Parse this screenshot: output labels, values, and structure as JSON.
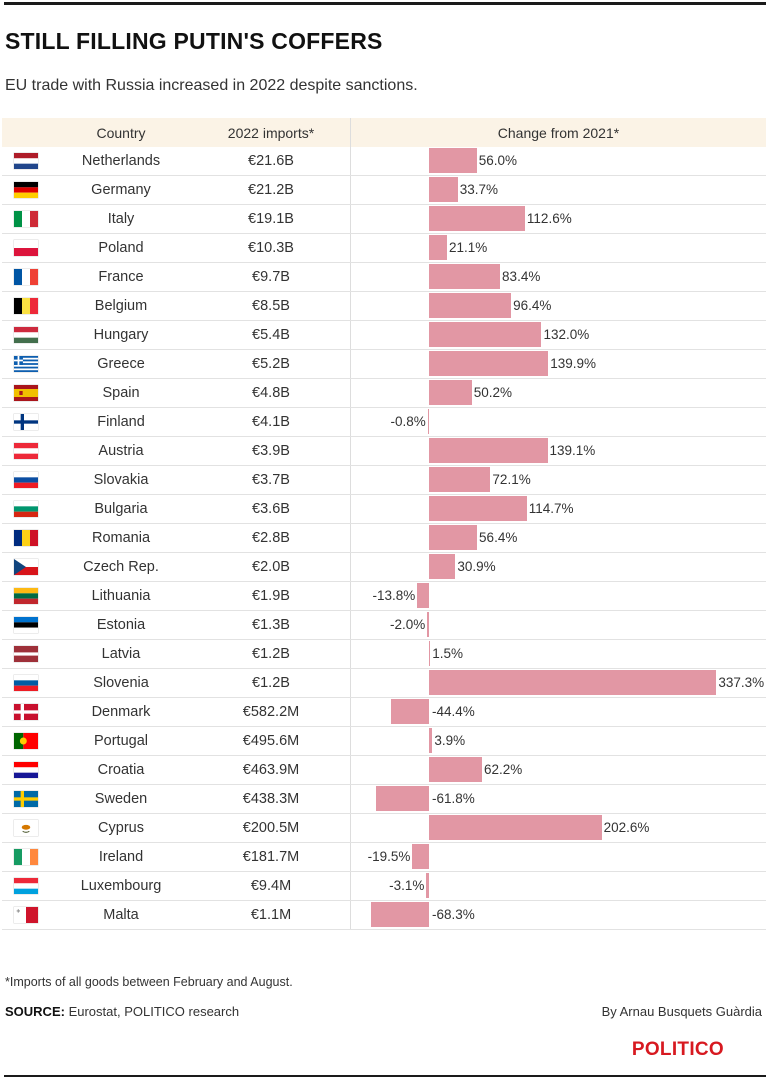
{
  "title": "STILL FILLING PUTIN'S COFFERS",
  "subtitle": "EU trade with Russia increased in 2022 despite sanctions.",
  "columns": {
    "country": "Country",
    "imports": "2022 imports*",
    "change": "Change from 2021*"
  },
  "chart_data": {
    "type": "bar",
    "orientation": "horizontal",
    "title": "STILL FILLING PUTIN'S COFFERS",
    "subtitle": "EU trade with Russia increased in 2022 despite sanctions.",
    "xlabel": "Change from 2021*",
    "ylabel": "Country",
    "xlim": [
      -70,
      340
    ],
    "grid": false,
    "legend": "none",
    "value_unit": "%",
    "categories": [
      "Netherlands",
      "Germany",
      "Italy",
      "Poland",
      "France",
      "Belgium",
      "Hungary",
      "Greece",
      "Spain",
      "Finland",
      "Austria",
      "Slovakia",
      "Bulgaria",
      "Romania",
      "Czech Rep.",
      "Lithuania",
      "Estonia",
      "Latvia",
      "Slovenia",
      "Denmark",
      "Portugal",
      "Croatia",
      "Sweden",
      "Cyprus",
      "Ireland",
      "Luxembourg",
      "Malta"
    ],
    "imports": [
      "€21.6B",
      "€21.2B",
      "€19.1B",
      "€10.3B",
      "€9.7B",
      "€8.5B",
      "€5.4B",
      "€5.2B",
      "€4.8B",
      "€4.1B",
      "€3.9B",
      "€3.7B",
      "€3.6B",
      "€2.8B",
      "€2.0B",
      "€1.9B",
      "€1.3B",
      "€1.2B",
      "€1.2B",
      "€582.2M",
      "€495.6M",
      "€463.9M",
      "€438.3M",
      "€200.5M",
      "€181.7M",
      "€9.4M",
      "€1.1M"
    ],
    "values": [
      56.0,
      33.7,
      112.6,
      21.1,
      83.4,
      96.4,
      132.0,
      139.9,
      50.2,
      -0.8,
      139.1,
      72.1,
      114.7,
      56.4,
      30.9,
      -13.8,
      -2.0,
      1.5,
      337.3,
      -44.4,
      3.9,
      62.2,
      -61.8,
      202.6,
      -19.5,
      -3.1,
      -68.3
    ],
    "value_labels": [
      "56.0%",
      "33.7%",
      "112.6%",
      "21.1%",
      "83.4%",
      "96.4%",
      "132.0%",
      "139.9%",
      "50.2%",
      "-0.8%",
      "139.1%",
      "72.1%",
      "114.7%",
      "56.4%",
      "30.9%",
      "-13.8%",
      "-2.0%",
      "1.5%",
      "337.3%",
      "-44.4%",
      "3.9%",
      "62.2%",
      "-61.8%",
      "202.6%",
      "-19.5%",
      "-3.1%",
      "-68.3%"
    ]
  },
  "colors": {
    "bar": "#e297a4",
    "header_bg": "#fbf3e6",
    "brand": "#d71920"
  },
  "flags": [
    {
      "name": "netherlands-flag-icon",
      "type": "h",
      "colors": [
        "#ae1c28",
        "#ffffff",
        "#21468b"
      ]
    },
    {
      "name": "germany-flag-icon",
      "type": "h",
      "colors": [
        "#000000",
        "#dd0000",
        "#ffce00"
      ]
    },
    {
      "name": "italy-flag-icon",
      "type": "v",
      "colors": [
        "#009246",
        "#ffffff",
        "#ce2b37"
      ]
    },
    {
      "name": "poland-flag-icon",
      "type": "h",
      "colors": [
        "#ffffff",
        "#dc143c"
      ]
    },
    {
      "name": "france-flag-icon",
      "type": "v",
      "colors": [
        "#0055a4",
        "#ffffff",
        "#ef4135"
      ]
    },
    {
      "name": "belgium-flag-icon",
      "type": "v",
      "colors": [
        "#000000",
        "#fae042",
        "#ed2939"
      ]
    },
    {
      "name": "hungary-flag-icon",
      "type": "h",
      "colors": [
        "#cd2a3e",
        "#ffffff",
        "#436f4d"
      ]
    },
    {
      "name": "greece-flag-icon",
      "type": "greece",
      "colors": [
        "#0d5eaf",
        "#ffffff"
      ]
    },
    {
      "name": "spain-flag-icon",
      "type": "spain",
      "colors": [
        "#aa151b",
        "#f1bf00"
      ]
    },
    {
      "name": "finland-flag-icon",
      "type": "nordic",
      "colors": [
        "#ffffff",
        "#003580"
      ]
    },
    {
      "name": "austria-flag-icon",
      "type": "h",
      "colors": [
        "#ed2939",
        "#ffffff",
        "#ed2939"
      ]
    },
    {
      "name": "slovakia-flag-icon",
      "type": "h",
      "colors": [
        "#ffffff",
        "#0b4ea2",
        "#ee1c25"
      ]
    },
    {
      "name": "bulgaria-flag-icon",
      "type": "h",
      "colors": [
        "#ffffff",
        "#00966e",
        "#d62612"
      ]
    },
    {
      "name": "romania-flag-icon",
      "type": "v",
      "colors": [
        "#002b7f",
        "#fcd116",
        "#ce1126"
      ]
    },
    {
      "name": "czech-republic-flag-icon",
      "type": "czech",
      "colors": [
        "#ffffff",
        "#d7141a",
        "#11457e"
      ]
    },
    {
      "name": "lithuania-flag-icon",
      "type": "h",
      "colors": [
        "#fdb913",
        "#006a44",
        "#c1272d"
      ]
    },
    {
      "name": "estonia-flag-icon",
      "type": "h",
      "colors": [
        "#0072ce",
        "#000000",
        "#ffffff"
      ]
    },
    {
      "name": "latvia-flag-icon",
      "type": "latvia",
      "colors": [
        "#9e3039",
        "#ffffff"
      ]
    },
    {
      "name": "slovenia-flag-icon",
      "type": "h",
      "colors": [
        "#ffffff",
        "#005da4",
        "#ed1c24"
      ]
    },
    {
      "name": "denmark-flag-icon",
      "type": "nordic",
      "colors": [
        "#c8102e",
        "#ffffff"
      ]
    },
    {
      "name": "portugal-flag-icon",
      "type": "portugal",
      "colors": [
        "#006600",
        "#ff0000",
        "#ffcc00"
      ]
    },
    {
      "name": "croatia-flag-icon",
      "type": "h",
      "colors": [
        "#ff0000",
        "#ffffff",
        "#171796"
      ]
    },
    {
      "name": "sweden-flag-icon",
      "type": "nordic",
      "colors": [
        "#006aa7",
        "#fecc00"
      ]
    },
    {
      "name": "cyprus-flag-icon",
      "type": "cyprus",
      "colors": [
        "#ffffff",
        "#d57800",
        "#4e5b31"
      ]
    },
    {
      "name": "ireland-flag-icon",
      "type": "v",
      "colors": [
        "#169b62",
        "#ffffff",
        "#ff883e"
      ]
    },
    {
      "name": "luxembourg-flag-icon",
      "type": "h",
      "colors": [
        "#ed2939",
        "#ffffff",
        "#00a1de"
      ]
    },
    {
      "name": "malta-flag-icon",
      "type": "malta",
      "colors": [
        "#ffffff",
        "#cf142b"
      ]
    }
  ],
  "footnote": "*Imports of all goods between February and August.",
  "source": {
    "label": "SOURCE:",
    "text": "Eurostat, POLITICO research"
  },
  "byline": "By Arnau Busquets Guàrdia",
  "brand": "POLITICO"
}
